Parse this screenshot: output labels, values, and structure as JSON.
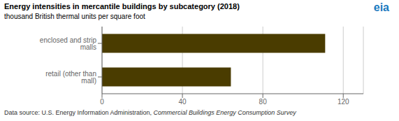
{
  "chart_data": {
    "type": "bar",
    "orientation": "horizontal",
    "title": "Energy intensities in mercantile buildings by subcategory (2018)",
    "subtitle": "thousand British thermal units per square foot",
    "categories": [
      "retail (other than mall)",
      "enclosed and strip malls"
    ],
    "values": [
      64.1,
      111.0
    ],
    "color": "#4a3c00",
    "xlim": [
      0,
      130
    ],
    "xticks": [
      0,
      40,
      80,
      120
    ],
    "grid": true,
    "annotations": [
      "Data source: U.S. Energy Information Administration, ",
      "Commercial Buildings Energy Consumption Survey",
      "eia"
    ]
  }
}
